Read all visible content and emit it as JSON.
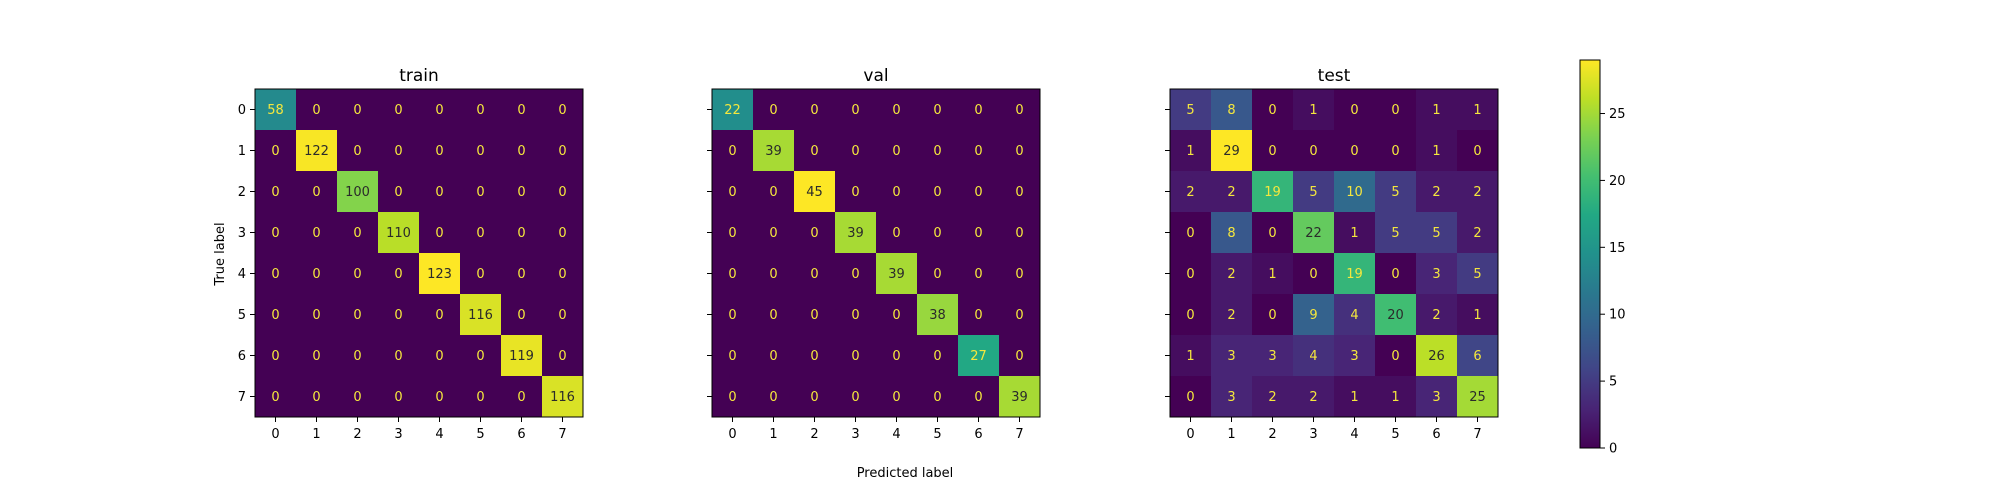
{
  "chart_data": {
    "type": "heatmap",
    "xlabel": "Predicted label",
    "ylabel": "True label",
    "x_ticks": [
      "0",
      "1",
      "2",
      "3",
      "4",
      "5",
      "6",
      "7"
    ],
    "y_ticks": [
      "0",
      "1",
      "2",
      "3",
      "4",
      "5",
      "6",
      "7"
    ],
    "colormap": "viridis",
    "colorbar": {
      "min": 0,
      "max": 29,
      "ticks": [
        0,
        5,
        10,
        15,
        20,
        25
      ]
    },
    "panels": [
      {
        "title": "train",
        "vmax": 123,
        "matrix": [
          [
            58,
            0,
            0,
            0,
            0,
            0,
            0,
            0
          ],
          [
            0,
            122,
            0,
            0,
            0,
            0,
            0,
            0
          ],
          [
            0,
            0,
            100,
            0,
            0,
            0,
            0,
            0
          ],
          [
            0,
            0,
            0,
            110,
            0,
            0,
            0,
            0
          ],
          [
            0,
            0,
            0,
            0,
            123,
            0,
            0,
            0
          ],
          [
            0,
            0,
            0,
            0,
            0,
            116,
            0,
            0
          ],
          [
            0,
            0,
            0,
            0,
            0,
            0,
            119,
            0
          ],
          [
            0,
            0,
            0,
            0,
            0,
            0,
            0,
            116
          ]
        ]
      },
      {
        "title": "val",
        "vmax": 45,
        "matrix": [
          [
            22,
            0,
            0,
            0,
            0,
            0,
            0,
            0
          ],
          [
            0,
            39,
            0,
            0,
            0,
            0,
            0,
            0
          ],
          [
            0,
            0,
            45,
            0,
            0,
            0,
            0,
            0
          ],
          [
            0,
            0,
            0,
            39,
            0,
            0,
            0,
            0
          ],
          [
            0,
            0,
            0,
            0,
            39,
            0,
            0,
            0
          ],
          [
            0,
            0,
            0,
            0,
            0,
            38,
            0,
            0
          ],
          [
            0,
            0,
            0,
            0,
            0,
            0,
            27,
            0
          ],
          [
            0,
            0,
            0,
            0,
            0,
            0,
            0,
            39
          ]
        ]
      },
      {
        "title": "test",
        "vmax": 29,
        "matrix": [
          [
            5,
            8,
            0,
            1,
            0,
            0,
            1,
            1
          ],
          [
            1,
            29,
            0,
            0,
            0,
            0,
            1,
            0
          ],
          [
            2,
            2,
            19,
            5,
            10,
            5,
            2,
            2
          ],
          [
            0,
            8,
            0,
            22,
            1,
            5,
            5,
            2
          ],
          [
            0,
            2,
            1,
            0,
            19,
            0,
            3,
            5
          ],
          [
            0,
            2,
            0,
            9,
            4,
            20,
            2,
            1
          ],
          [
            1,
            3,
            3,
            4,
            3,
            0,
            26,
            6
          ],
          [
            0,
            3,
            2,
            2,
            1,
            1,
            3,
            25
          ]
        ]
      }
    ]
  }
}
